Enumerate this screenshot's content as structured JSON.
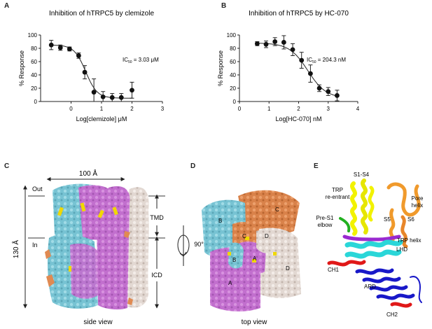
{
  "panels": {
    "a": "A",
    "b": "B",
    "c": "C",
    "d": "D",
    "e": "E"
  },
  "chart_data": [
    {
      "type": "scatter",
      "title": "Inhibition of hTRPC5 by clemizole",
      "xlabel": "Log[clemizole] μM",
      "ylabel": "% Response",
      "xlim": [
        -1,
        3
      ],
      "ylim": [
        0,
        100
      ],
      "xticks": [
        "0",
        "1",
        "2",
        "3"
      ],
      "yticks": [
        "0",
        "20",
        "40",
        "60",
        "80",
        "100"
      ],
      "annotation": {
        "ic": "IC",
        "sub": "50",
        "value": "= 3.03 μM"
      },
      "points": [
        {
          "x": -0.65,
          "y": 85,
          "err": 7
        },
        {
          "x": -0.35,
          "y": 81,
          "err": 4
        },
        {
          "x": -0.05,
          "y": 79,
          "err": 3
        },
        {
          "x": 0.25,
          "y": 69,
          "err": 4
        },
        {
          "x": 0.45,
          "y": 44,
          "err": 10
        },
        {
          "x": 0.75,
          "y": 14,
          "err": 20
        },
        {
          "x": 1.05,
          "y": 7,
          "err": 8
        },
        {
          "x": 1.35,
          "y": 6,
          "err": 6
        },
        {
          "x": 1.65,
          "y": 6,
          "err": 6
        },
        {
          "x": 2.0,
          "y": 17,
          "err": 12
        }
      ],
      "fit": {
        "top": 85,
        "bottom": 5,
        "logIC50": 0.48,
        "hill": 2.3
      }
    },
    {
      "type": "scatter",
      "title": "Inhibition of hTRPC5 by HC-070",
      "xlabel": "Log[HC-070] nM",
      "ylabel": "% Response",
      "xlim": [
        0,
        4
      ],
      "ylim": [
        0,
        100
      ],
      "xticks": [
        "0",
        "1",
        "2",
        "3",
        "4"
      ],
      "yticks": [
        "0",
        "20",
        "40",
        "60",
        "80",
        "100"
      ],
      "annotation": {
        "ic": "IC",
        "sub": "50",
        "value": "= 204.3 nM"
      },
      "points": [
        {
          "x": 0.6,
          "y": 87,
          "err": 3
        },
        {
          "x": 0.9,
          "y": 86,
          "err": 5
        },
        {
          "x": 1.2,
          "y": 90,
          "err": 6
        },
        {
          "x": 1.5,
          "y": 89,
          "err": 10
        },
        {
          "x": 1.8,
          "y": 78,
          "err": 9
        },
        {
          "x": 2.1,
          "y": 62,
          "err": 12
        },
        {
          "x": 2.4,
          "y": 42,
          "err": 13
        },
        {
          "x": 2.7,
          "y": 20,
          "err": 5
        },
        {
          "x": 3.0,
          "y": 15,
          "err": 6
        },
        {
          "x": 3.3,
          "y": 9,
          "err": 8
        }
      ],
      "fit": {
        "top": 88,
        "bottom": 5,
        "logIC50": 2.31,
        "hill": 1.4
      }
    }
  ],
  "structure": {
    "side_view_label": "side view",
    "top_view_label": "top view",
    "dimension_width": "100 Å",
    "dimension_height": "130 Å",
    "out": "Out",
    "in": "In",
    "tmd": "TMD",
    "icd": "ICD",
    "rotation": "90°",
    "subunits": {
      "a": "A",
      "b": "B",
      "c": "C",
      "d": "D"
    },
    "subunit_colors": {
      "A": "#c877d4",
      "B": "#7fc9d8",
      "C": "#e08a52",
      "D": "#e6dcd6",
      "ligand": "#f0d800"
    },
    "domains": {
      "s1s4": "S1-S4",
      "pore_helix": "Pore\nhelix",
      "trp_reentrant": "TRP\nre-entrant",
      "pre_s1_elbow": "Pre-S1\nelbow",
      "s5": "S5",
      "s6": "S6",
      "trp_helix": "TRP helix",
      "lhd": "LHD",
      "ch1": "CH1",
      "ard": "ARD",
      "ch2": "CH2"
    },
    "domain_colors": {
      "s1s4": "#f2f200",
      "pore": "#f09a2c",
      "pre_s1": "#22b020",
      "lhd": "#2ad6d8",
      "trp": "#9a2ad0",
      "ch": "#e01818",
      "ard": "#1818c8"
    }
  }
}
